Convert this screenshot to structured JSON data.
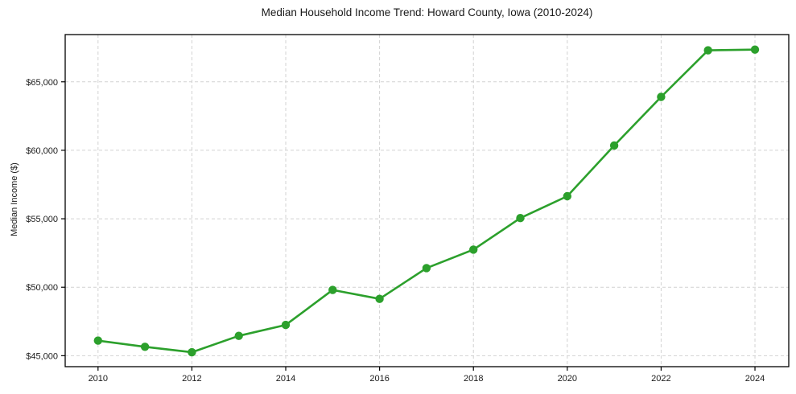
{
  "chart_data": {
    "type": "line",
    "title": "Median Household Income Trend: Howard County, Iowa (2010-2024)",
    "xlabel": "",
    "ylabel": "Median Income ($)",
    "x": [
      2010,
      2011,
      2012,
      2013,
      2014,
      2015,
      2016,
      2017,
      2018,
      2019,
      2020,
      2021,
      2022,
      2023,
      2024
    ],
    "values": [
      46100,
      45650,
      45250,
      46450,
      47250,
      49800,
      49150,
      51400,
      52750,
      55050,
      56650,
      60350,
      63900,
      67300,
      67350
    ],
    "xlim": [
      2009.3,
      2024.72
    ],
    "ylim": [
      44200,
      68450
    ],
    "x_ticks": [
      2010,
      2012,
      2014,
      2016,
      2018,
      2020,
      2022,
      2024
    ],
    "y_ticks": [
      45000,
      50000,
      55000,
      60000,
      65000
    ],
    "y_tick_labels": [
      "$45,000",
      "$50,000",
      "$55,000",
      "$60,000",
      "$65,000"
    ],
    "grid": true,
    "grid_style": "dashed",
    "legend": false,
    "marker": "circle",
    "line_color": "#2ca02c",
    "grid_color": "#d2d2d2",
    "spine_color": "#000000",
    "tick_color": "#000000",
    "text_color": "#1a1a1a",
    "background_color": "#ffffff"
  }
}
